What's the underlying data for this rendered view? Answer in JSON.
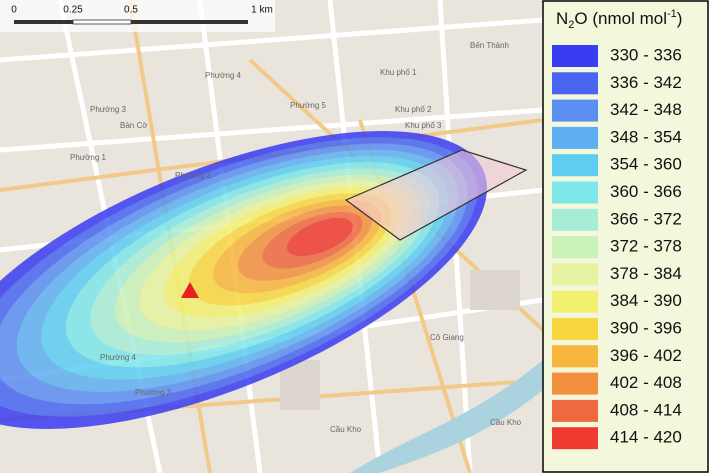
{
  "scale_bar": {
    "labels": [
      "0",
      "0.25",
      "0.5",
      "1 km"
    ]
  },
  "legend": {
    "title": {
      "element": "N",
      "subscript": "2",
      "rest": "O (nmol mol",
      "superscript": "-1",
      "close": ")"
    },
    "items": [
      {
        "label": "330 - 336",
        "color": "#3a3cf2"
      },
      {
        "label": "336 - 342",
        "color": "#4866f2"
      },
      {
        "label": "342 - 348",
        "color": "#5a8ef0"
      },
      {
        "label": "348 - 354",
        "color": "#5eaff2"
      },
      {
        "label": "354 - 360",
        "color": "#5dcdf2"
      },
      {
        "label": "360 - 366",
        "color": "#7fe6ea"
      },
      {
        "label": "366 - 372",
        "color": "#a6edd6"
      },
      {
        "label": "372 - 378",
        "color": "#c9f1b8"
      },
      {
        "label": "378 - 384",
        "color": "#e6f2a0"
      },
      {
        "label": "384 - 390",
        "color": "#f2f070"
      },
      {
        "label": "390 - 396",
        "color": "#f8d640"
      },
      {
        "label": "396 - 402",
        "color": "#f8b63e"
      },
      {
        "label": "402 - 408",
        "color": "#f29040"
      },
      {
        "label": "408 - 414",
        "color": "#ee6840"
      },
      {
        "label": "414 - 420",
        "color": "#ee3a30"
      }
    ]
  },
  "map": {
    "labels": [
      "Phường 4",
      "Phường 5",
      "Phường 3",
      "Phường 1",
      "Phường 2",
      "Khu phố 1",
      "Khu phố 2",
      "Khu phố 3",
      "Bến Thành",
      "Cô Giang",
      "Cầu Kho",
      "Bàn Cờ",
      "Phường 4",
      "Phường 3",
      "Cầu Kho"
    ]
  }
}
